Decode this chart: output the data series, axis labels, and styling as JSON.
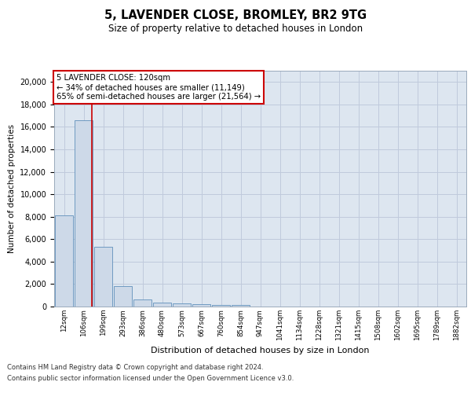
{
  "title": "5, LAVENDER CLOSE, BROMLEY, BR2 9TG",
  "subtitle": "Size of property relative to detached houses in London",
  "xlabel": "Distribution of detached houses by size in London",
  "ylabel": "Number of detached properties",
  "annotation_line1": "5 LAVENDER CLOSE: 120sqm",
  "annotation_line2": "← 34% of detached houses are smaller (11,149)",
  "annotation_line3": "65% of semi-detached houses are larger (21,564) →",
  "categories": [
    "12sqm",
    "106sqm",
    "199sqm",
    "293sqm",
    "386sqm",
    "480sqm",
    "573sqm",
    "667sqm",
    "760sqm",
    "854sqm",
    "947sqm",
    "1041sqm",
    "1134sqm",
    "1228sqm",
    "1321sqm",
    "1415sqm",
    "1508sqm",
    "1602sqm",
    "1695sqm",
    "1789sqm",
    "1882sqm"
  ],
  "values": [
    8100,
    16600,
    5300,
    1850,
    650,
    370,
    260,
    200,
    160,
    130,
    0,
    0,
    0,
    0,
    0,
    0,
    0,
    0,
    0,
    0,
    0
  ],
  "bar_color": "#cdd9e8",
  "bar_edge_color": "#6090bb",
  "red_line_x": 1.42,
  "ylim": [
    0,
    21000
  ],
  "yticks": [
    0,
    2000,
    4000,
    6000,
    8000,
    10000,
    12000,
    14000,
    16000,
    18000,
    20000
  ],
  "grid_color": "#c0cadc",
  "plot_bg_color": "#dde6f0",
  "footer_line1": "Contains HM Land Registry data © Crown copyright and database right 2024.",
  "footer_line2": "Contains public sector information licensed under the Open Government Licence v3.0."
}
